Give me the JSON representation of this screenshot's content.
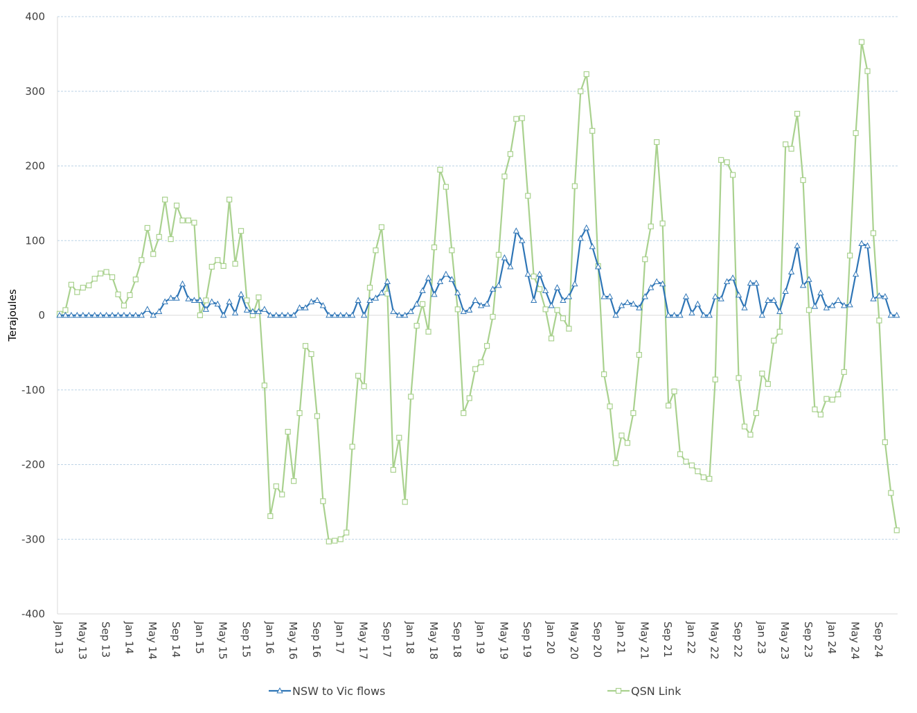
{
  "chart_data": {
    "type": "line",
    "title": "",
    "xlabel": "",
    "ylabel": "Terajoules",
    "ylim": [
      -400,
      400
    ],
    "yticks": [
      "400",
      "300",
      "200",
      "100",
      "0",
      "-100",
      "-200",
      "-300",
      "-400"
    ],
    "grid": "horizontal dashed",
    "legend_position": "bottom",
    "x_tick_labels": [
      "Jan 13",
      "May 13",
      "Sep 13",
      "Jan 14",
      "May 14",
      "Sep 14",
      "Jan 15",
      "May 15",
      "Sep 15",
      "Jan 16",
      "May 16",
      "Sep 16",
      "Jan 17",
      "May 17",
      "Sep 17",
      "Jan 18",
      "May 18",
      "Sep 18",
      "Jan 19",
      "May 19",
      "Sep 19",
      "Jan 20",
      "May 20",
      "Sep 20",
      "Jan 21",
      "May 21",
      "Sep 21",
      "Jan 22",
      "May 22",
      "Sep 22",
      "Jan 23",
      "May 23",
      "Sep 23",
      "Jan 24",
      "May 24",
      "Sep 24"
    ],
    "x_start": "Jan 13",
    "x_interval": "month",
    "series": [
      {
        "name": "NSW to Vic flows",
        "color": "#2e75b6",
        "marker": "triangle",
        "values": [
          0,
          0,
          0,
          0,
          0,
          0,
          0,
          0,
          0,
          0,
          0,
          0,
          0,
          0,
          0,
          8,
          0,
          5,
          18,
          23,
          23,
          42,
          22,
          20,
          20,
          8,
          18,
          15,
          0,
          18,
          3,
          28,
          7,
          5,
          5,
          8,
          0,
          0,
          0,
          0,
          0,
          10,
          10,
          18,
          20,
          13,
          0,
          0,
          0,
          0,
          0,
          20,
          0,
          20,
          23,
          30,
          45,
          5,
          0,
          0,
          5,
          15,
          33,
          50,
          28,
          45,
          55,
          48,
          30,
          5,
          7,
          20,
          13,
          15,
          35,
          40,
          77,
          65,
          113,
          100,
          55,
          20,
          55,
          33,
          13,
          37,
          20,
          25,
          42,
          103,
          117,
          92,
          65,
          25,
          25,
          0,
          13,
          17,
          15,
          10,
          25,
          37,
          45,
          42,
          0,
          0,
          0,
          25,
          3,
          15,
          0,
          0,
          25,
          22,
          45,
          50,
          27,
          10,
          43,
          43,
          0,
          20,
          20,
          5,
          32,
          58,
          93,
          40,
          48,
          12,
          30,
          10,
          13,
          20,
          13,
          14,
          55,
          96,
          93,
          22,
          26,
          25,
          0,
          0
        ]
      },
      {
        "name": "QSN Link",
        "color": "#a9d18e",
        "marker": "square",
        "values": [
          2,
          7,
          41,
          31,
          37,
          40,
          49,
          56,
          58,
          51,
          28,
          13,
          27,
          48,
          74,
          117,
          82,
          105,
          155,
          102,
          147,
          127,
          127,
          124,
          0,
          20,
          65,
          74,
          66,
          155,
          69,
          113,
          20,
          0,
          24,
          -94,
          -269,
          -229,
          -240,
          -156,
          -222,
          -131,
          -41,
          -52,
          -135,
          -249,
          -303,
          -302,
          -300,
          -291,
          -176,
          -81,
          -95,
          37,
          87,
          118,
          29,
          -207,
          -164,
          -250,
          -109,
          -14,
          15,
          -22,
          91,
          195,
          172,
          87,
          8,
          -131,
          -111,
          -72,
          -63,
          -41,
          -2,
          81,
          186,
          216,
          263,
          264,
          160,
          52,
          35,
          8,
          -31,
          7,
          -4,
          -18,
          173,
          300,
          323,
          247,
          66,
          -79,
          -122,
          -198,
          -161,
          -171,
          -131,
          -53,
          75,
          119,
          232,
          123,
          -121,
          -102,
          -186,
          -196,
          -201,
          -209,
          -217,
          -219,
          -86,
          208,
          205,
          188,
          -84,
          -149,
          -160,
          -131,
          -78,
          -92,
          -34,
          -22,
          229,
          223,
          270,
          181,
          7,
          -126,
          -133,
          -112,
          -113,
          -106,
          -76,
          80,
          244,
          366,
          327,
          110,
          -7,
          -170,
          -238,
          -288
        ]
      }
    ]
  }
}
